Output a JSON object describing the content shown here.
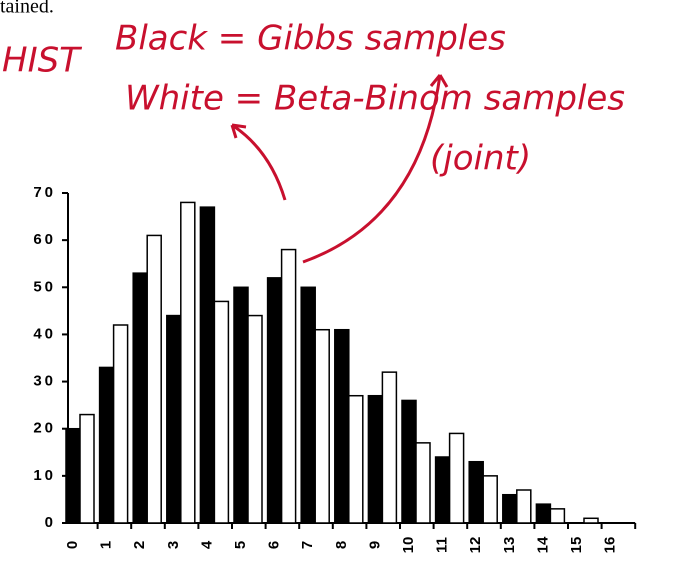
{
  "page_text": "tained.",
  "chart_data": {
    "type": "bar",
    "annotations": [
      "HIST",
      "(joint)"
    ],
    "categories": [
      "0",
      "1",
      "2",
      "3",
      "4",
      "5",
      "6",
      "7",
      "8",
      "9",
      "10",
      "11",
      "12",
      "13",
      "14",
      "15",
      "16"
    ],
    "series": [
      {
        "name": "Black = Gibbs samples",
        "color": "#000000",
        "values": [
          20,
          33,
          53,
          44,
          67,
          50,
          52,
          50,
          41,
          27,
          26,
          14,
          13,
          6,
          4,
          0,
          0
        ]
      },
      {
        "name": "White = Beta-Binom samples",
        "color": "#ffffff",
        "values": [
          23,
          42,
          61,
          68,
          47,
          44,
          58,
          41,
          27,
          32,
          17,
          19,
          10,
          7,
          3,
          1,
          0
        ]
      }
    ],
    "ylim": [
      0,
      70
    ],
    "yticks": [
      0,
      10,
      20,
      30,
      40,
      50,
      60,
      70
    ]
  }
}
